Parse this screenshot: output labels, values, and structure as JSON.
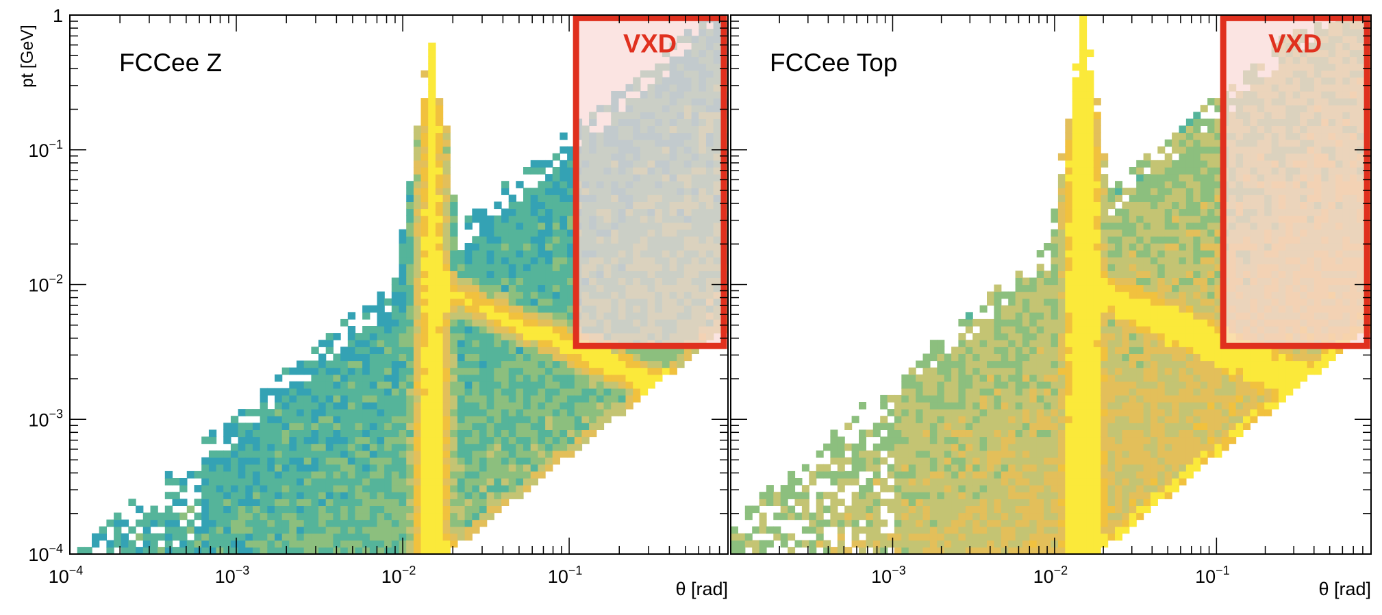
{
  "figure": {
    "ylabel": "pt [GeV]",
    "xlabel": "θ [rad]",
    "colors": {
      "frame": "#000000",
      "vxd_border": "#e0301e",
      "vxd_fill": "#f9d9d7",
      "vxd_text": "#e0301e",
      "palette": [
        "#2c62d8",
        "#3f86d4",
        "#34a2b4",
        "#55b49a",
        "#8cbf7e",
        "#c4c473",
        "#e3bf5a",
        "#f1c13e",
        "#fbe93a"
      ]
    }
  },
  "chart_data": [
    {
      "type": "heatmap",
      "title": "FCCee Z",
      "xlabel": "θ [rad]",
      "ylabel": "pt [GeV]",
      "xscale": "log",
      "yscale": "log",
      "xlim": [
        0.0001,
        0.9
      ],
      "ylim": [
        0.0001,
        1
      ],
      "x_ticks": [
        {
          "value": 0.0001,
          "base": "10",
          "exp": "−4"
        },
        {
          "value": 0.001,
          "base": "10",
          "exp": "−3"
        },
        {
          "value": 0.01,
          "base": "10",
          "exp": "−2"
        },
        {
          "value": 0.1,
          "base": "10",
          "exp": "−1"
        }
      ],
      "y_ticks": [
        {
          "value": 0.0001,
          "base": "10",
          "exp": "−4"
        },
        {
          "value": 0.001,
          "base": "10",
          "exp": "−3"
        },
        {
          "value": 0.01,
          "base": "10",
          "exp": "−2"
        },
        {
          "value": 0.1,
          "base": "10",
          "exp": "−1"
        },
        {
          "value": 1,
          "base": "1",
          "exp": ""
        }
      ],
      "peak_theta": 0.015,
      "peak_pt_max": 0.68,
      "diagonal_pt_per_rad": 0.0056,
      "regions": [
        {
          "label": "VXD",
          "theta_range": [
            0.11,
            0.85
          ],
          "pt_range": [
            0.0035,
            0.95
          ]
        }
      ]
    },
    {
      "type": "heatmap",
      "title": "FCCee Top",
      "xlabel": "θ [rad]",
      "ylabel": "pt [GeV]",
      "xscale": "log",
      "yscale": "log",
      "xlim": [
        0.0001,
        0.9
      ],
      "ylim": [
        0.0001,
        1
      ],
      "x_ticks": [
        {
          "value": 0.001,
          "base": "10",
          "exp": "−3"
        },
        {
          "value": 0.01,
          "base": "10",
          "exp": "−2"
        },
        {
          "value": 0.1,
          "base": "10",
          "exp": "−1"
        }
      ],
      "y_ticks": [],
      "peak_theta": 0.015,
      "peak_pt_max": 1,
      "diagonal_pt_per_rad": 0.0056,
      "regions": [
        {
          "label": "VXD",
          "theta_range": [
            0.11,
            0.85
          ],
          "pt_range": [
            0.0035,
            0.95
          ]
        }
      ]
    }
  ]
}
